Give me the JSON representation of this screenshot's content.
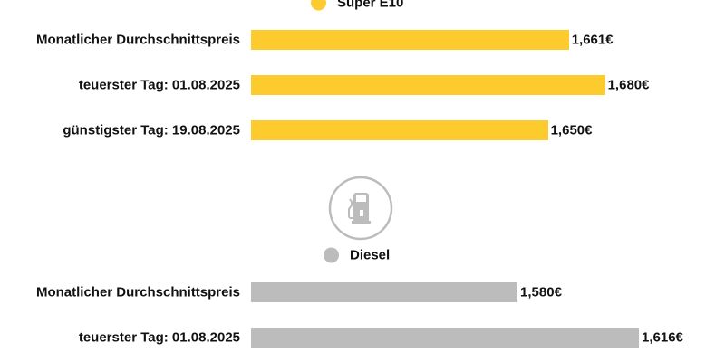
{
  "chart_data": [
    {
      "type": "bar",
      "orientation": "horizontal",
      "series_name": "Super E10",
      "color": "#FDCB2E",
      "categories": [
        "Monatlicher Durchschnittspreis",
        "teuerster Tag: 01.08.2025",
        "günstigster Tag: 19.08.2025"
      ],
      "values": [
        1.661,
        1.68,
        1.65
      ],
      "value_labels": [
        "1,661€",
        "1,680€",
        "1,650€"
      ]
    },
    {
      "type": "bar",
      "orientation": "horizontal",
      "series_name": "Diesel",
      "color": "#BDBCBC",
      "icon": "fuel-pump-icon",
      "categories": [
        "Monatlicher Durchschnittspreis",
        "teuerster Tag: 01.08.2025"
      ],
      "values": [
        1.58,
        1.616
      ],
      "value_labels": [
        "1,580€",
        "1,616€"
      ]
    }
  ]
}
